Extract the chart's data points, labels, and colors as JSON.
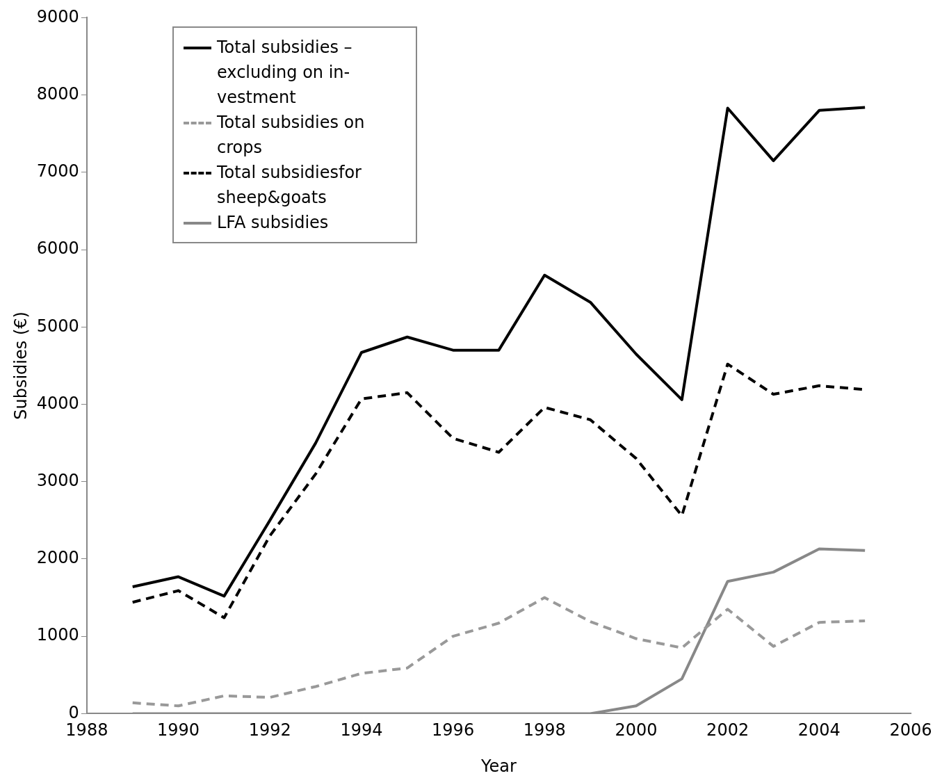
{
  "chart_data": {
    "type": "line",
    "xlabel": "Year",
    "ylabel": "Subsidies (€)",
    "x": [
      1989,
      1990,
      1991,
      1992,
      1993,
      1994,
      1995,
      1996,
      1997,
      1998,
      1999,
      2000,
      2001,
      2002,
      2003,
      2004,
      2005
    ],
    "series": [
      {
        "name": "Total subsidies – excluding on in-vestment",
        "color": "#000000",
        "line_style": "solid",
        "values": [
          1640,
          1770,
          1520,
          2500,
          3500,
          4670,
          4870,
          4700,
          4700,
          5670,
          5320,
          4650,
          4060,
          7830,
          7150,
          7800,
          7840
        ]
      },
      {
        "name": "Total subsidies on crops",
        "color": "#999999",
        "line_style": "dashed",
        "values": [
          140,
          100,
          230,
          210,
          350,
          520,
          590,
          1000,
          1170,
          1500,
          1190,
          970,
          850,
          1350,
          870,
          1180,
          1200
        ]
      },
      {
        "name": "Total subsidiesfor sheep&goats",
        "color": "#000000",
        "line_style": "dashed",
        "values": [
          1440,
          1590,
          1240,
          2300,
          3100,
          4070,
          4150,
          3560,
          3380,
          3960,
          3800,
          3300,
          2560,
          4520,
          4130,
          4240,
          4190
        ]
      },
      {
        "name": "LFA subsidies",
        "color": "#888888",
        "line_style": "solid",
        "values": [
          0,
          0,
          0,
          0,
          0,
          0,
          0,
          0,
          0,
          0,
          0,
          100,
          450,
          1710,
          1830,
          2130,
          2110
        ]
      }
    ],
    "xlim": [
      1988,
      2006
    ],
    "xticks": [
      1988,
      1990,
      1992,
      1994,
      1996,
      1998,
      2000,
      2002,
      2004,
      2006
    ],
    "ylim": [
      0,
      9000
    ],
    "yticks": [
      0,
      1000,
      2000,
      3000,
      4000,
      5000,
      6000,
      7000,
      8000,
      9000
    ],
    "grid": false,
    "legend": "top left",
    "marker": "none"
  }
}
